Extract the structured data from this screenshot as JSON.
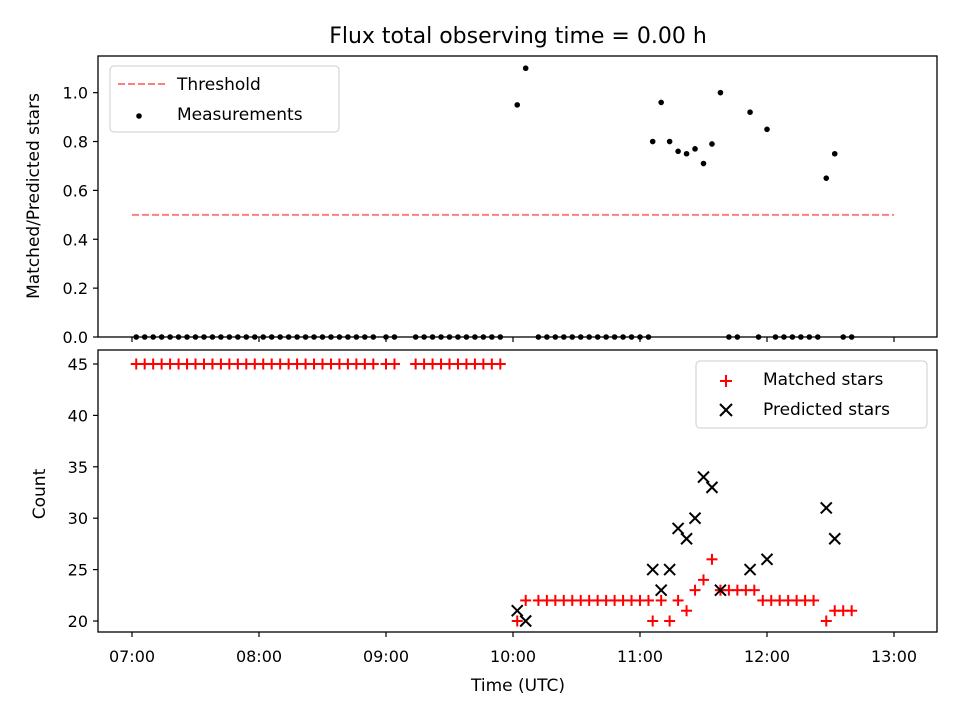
{
  "chart_data": [
    {
      "type": "scatter",
      "title": "Flux total observing time = 0.00 h",
      "xlabel": "",
      "ylabel": "Matched/Predicted stars",
      "ylim": [
        0,
        1.15
      ],
      "yticks": [
        "0.0",
        "0.2",
        "0.4",
        "0.6",
        "0.8",
        "1.0"
      ],
      "ytick_values": [
        0,
        0.2,
        0.4,
        0.6,
        0.8,
        1.0
      ],
      "legend_position": "top-left",
      "legend": [
        {
          "label": "Threshold",
          "style": "dashed-line",
          "color": "#ff7f7f"
        },
        {
          "label": "Measurements",
          "style": "dot",
          "color": "#000000"
        }
      ],
      "threshold": {
        "name": "Threshold",
        "y": 0.5,
        "x_start": "07:00",
        "x_end": "13:00",
        "color": "#ff7f7f"
      },
      "series": [
        {
          "name": "Measurements",
          "color": "#000000",
          "points": [
            [
              "07:02",
              0
            ],
            [
              "07:06",
              0
            ],
            [
              "07:10",
              0
            ],
            [
              "07:14",
              0
            ],
            [
              "07:18",
              0
            ],
            [
              "07:22",
              0
            ],
            [
              "07:26",
              0
            ],
            [
              "07:30",
              0
            ],
            [
              "07:34",
              0
            ],
            [
              "07:38",
              0
            ],
            [
              "07:42",
              0
            ],
            [
              "07:46",
              0
            ],
            [
              "07:50",
              0
            ],
            [
              "07:54",
              0
            ],
            [
              "07:58",
              0
            ],
            [
              "08:02",
              0
            ],
            [
              "08:06",
              0
            ],
            [
              "08:10",
              0
            ],
            [
              "08:14",
              0
            ],
            [
              "08:18",
              0
            ],
            [
              "08:22",
              0
            ],
            [
              "08:26",
              0
            ],
            [
              "08:30",
              0
            ],
            [
              "08:34",
              0
            ],
            [
              "08:38",
              0
            ],
            [
              "08:42",
              0
            ],
            [
              "08:46",
              0
            ],
            [
              "08:50",
              0
            ],
            [
              "08:54",
              0
            ],
            [
              "09:00",
              0
            ],
            [
              "09:04",
              0
            ],
            [
              "09:14",
              0
            ],
            [
              "09:18",
              0
            ],
            [
              "09:22",
              0
            ],
            [
              "09:26",
              0
            ],
            [
              "09:30",
              0
            ],
            [
              "09:34",
              0
            ],
            [
              "09:38",
              0
            ],
            [
              "09:42",
              0
            ],
            [
              "09:46",
              0
            ],
            [
              "09:50",
              0
            ],
            [
              "09:54",
              0
            ],
            [
              "10:02",
              0.95
            ],
            [
              "10:06",
              1.1
            ],
            [
              "10:12",
              0
            ],
            [
              "10:16",
              0
            ],
            [
              "10:20",
              0
            ],
            [
              "10:24",
              0
            ],
            [
              "10:28",
              0
            ],
            [
              "10:32",
              0
            ],
            [
              "10:36",
              0
            ],
            [
              "10:40",
              0
            ],
            [
              "10:44",
              0
            ],
            [
              "10:48",
              0
            ],
            [
              "10:52",
              0
            ],
            [
              "10:56",
              0
            ],
            [
              "11:00",
              0
            ],
            [
              "11:04",
              0
            ],
            [
              "11:06",
              0.8
            ],
            [
              "11:10",
              0.96
            ],
            [
              "11:14",
              0.8
            ],
            [
              "11:18",
              0.76
            ],
            [
              "11:22",
              0.75
            ],
            [
              "11:26",
              0.77
            ],
            [
              "11:30",
              0.71
            ],
            [
              "11:34",
              0.79
            ],
            [
              "11:38",
              1.0
            ],
            [
              "11:42",
              0
            ],
            [
              "11:46",
              0
            ],
            [
              "11:52",
              0.92
            ],
            [
              "11:56",
              0
            ],
            [
              "12:00",
              0.85
            ],
            [
              "12:04",
              0
            ],
            [
              "12:08",
              0
            ],
            [
              "12:12",
              0
            ],
            [
              "12:16",
              0
            ],
            [
              "12:20",
              0
            ],
            [
              "12:24",
              0
            ],
            [
              "12:28",
              0.65
            ],
            [
              "12:32",
              0.75
            ],
            [
              "12:36",
              0
            ],
            [
              "12:40",
              0
            ]
          ]
        }
      ]
    },
    {
      "type": "scatter",
      "title": "",
      "xlabel": "Time (UTC)",
      "ylabel": "Count",
      "ylim": [
        19,
        46.5
      ],
      "yticks": [
        "20",
        "25",
        "30",
        "35",
        "40",
        "45"
      ],
      "ytick_values": [
        20,
        25,
        30,
        35,
        40,
        45
      ],
      "xticks": [
        "07:00",
        "08:00",
        "09:00",
        "10:00",
        "11:00",
        "12:00",
        "13:00"
      ],
      "legend_position": "top-right",
      "legend": [
        {
          "label": "Matched stars",
          "style": "plus",
          "color": "#ff0000"
        },
        {
          "label": "Predicted stars",
          "style": "cross",
          "color": "#000000"
        }
      ],
      "series": [
        {
          "name": "Matched stars",
          "color": "#ff0000",
          "points": [
            [
              "07:02",
              45
            ],
            [
              "07:06",
              45
            ],
            [
              "07:10",
              45
            ],
            [
              "07:14",
              45
            ],
            [
              "07:18",
              45
            ],
            [
              "07:22",
              45
            ],
            [
              "07:26",
              45
            ],
            [
              "07:30",
              45
            ],
            [
              "07:34",
              45
            ],
            [
              "07:38",
              45
            ],
            [
              "07:42",
              45
            ],
            [
              "07:46",
              45
            ],
            [
              "07:50",
              45
            ],
            [
              "07:54",
              45
            ],
            [
              "07:58",
              45
            ],
            [
              "08:02",
              45
            ],
            [
              "08:06",
              45
            ],
            [
              "08:10",
              45
            ],
            [
              "08:14",
              45
            ],
            [
              "08:18",
              45
            ],
            [
              "08:22",
              45
            ],
            [
              "08:26",
              45
            ],
            [
              "08:30",
              45
            ],
            [
              "08:34",
              45
            ],
            [
              "08:38",
              45
            ],
            [
              "08:42",
              45
            ],
            [
              "08:46",
              45
            ],
            [
              "08:50",
              45
            ],
            [
              "08:54",
              45
            ],
            [
              "09:00",
              45
            ],
            [
              "09:04",
              45
            ],
            [
              "09:14",
              45
            ],
            [
              "09:18",
              45
            ],
            [
              "09:22",
              45
            ],
            [
              "09:26",
              45
            ],
            [
              "09:30",
              45
            ],
            [
              "09:34",
              45
            ],
            [
              "09:38",
              45
            ],
            [
              "09:42",
              45
            ],
            [
              "09:46",
              45
            ],
            [
              "09:50",
              45
            ],
            [
              "09:54",
              45
            ],
            [
              "10:02",
              20
            ],
            [
              "10:06",
              22
            ],
            [
              "10:12",
              22
            ],
            [
              "10:16",
              22
            ],
            [
              "10:20",
              22
            ],
            [
              "10:24",
              22
            ],
            [
              "10:28",
              22
            ],
            [
              "10:32",
              22
            ],
            [
              "10:36",
              22
            ],
            [
              "10:40",
              22
            ],
            [
              "10:44",
              22
            ],
            [
              "10:48",
              22
            ],
            [
              "10:52",
              22
            ],
            [
              "10:56",
              22
            ],
            [
              "11:00",
              22
            ],
            [
              "11:04",
              22
            ],
            [
              "11:06",
              20
            ],
            [
              "11:10",
              22
            ],
            [
              "11:14",
              20
            ],
            [
              "11:18",
              22
            ],
            [
              "11:22",
              21
            ],
            [
              "11:26",
              23
            ],
            [
              "11:30",
              24
            ],
            [
              "11:34",
              26
            ],
            [
              "11:38",
              23
            ],
            [
              "11:42",
              23
            ],
            [
              "11:46",
              23
            ],
            [
              "11:50",
              23
            ],
            [
              "11:54",
              23
            ],
            [
              "11:58",
              22
            ],
            [
              "12:02",
              22
            ],
            [
              "12:06",
              22
            ],
            [
              "12:10",
              22
            ],
            [
              "12:14",
              22
            ],
            [
              "12:18",
              22
            ],
            [
              "12:22",
              22
            ],
            [
              "12:28",
              20
            ],
            [
              "12:32",
              21
            ],
            [
              "12:36",
              21
            ],
            [
              "12:40",
              21
            ]
          ]
        },
        {
          "name": "Predicted stars",
          "color": "#000000",
          "points": [
            [
              "10:02",
              21
            ],
            [
              "10:06",
              20
            ],
            [
              "11:06",
              25
            ],
            [
              "11:10",
              23
            ],
            [
              "11:14",
              25
            ],
            [
              "11:18",
              29
            ],
            [
              "11:22",
              28
            ],
            [
              "11:26",
              30
            ],
            [
              "11:30",
              34
            ],
            [
              "11:34",
              33
            ],
            [
              "11:38",
              23
            ],
            [
              "11:52",
              25
            ],
            [
              "12:00",
              26
            ],
            [
              "12:28",
              31
            ],
            [
              "12:32",
              28
            ]
          ]
        }
      ]
    }
  ]
}
